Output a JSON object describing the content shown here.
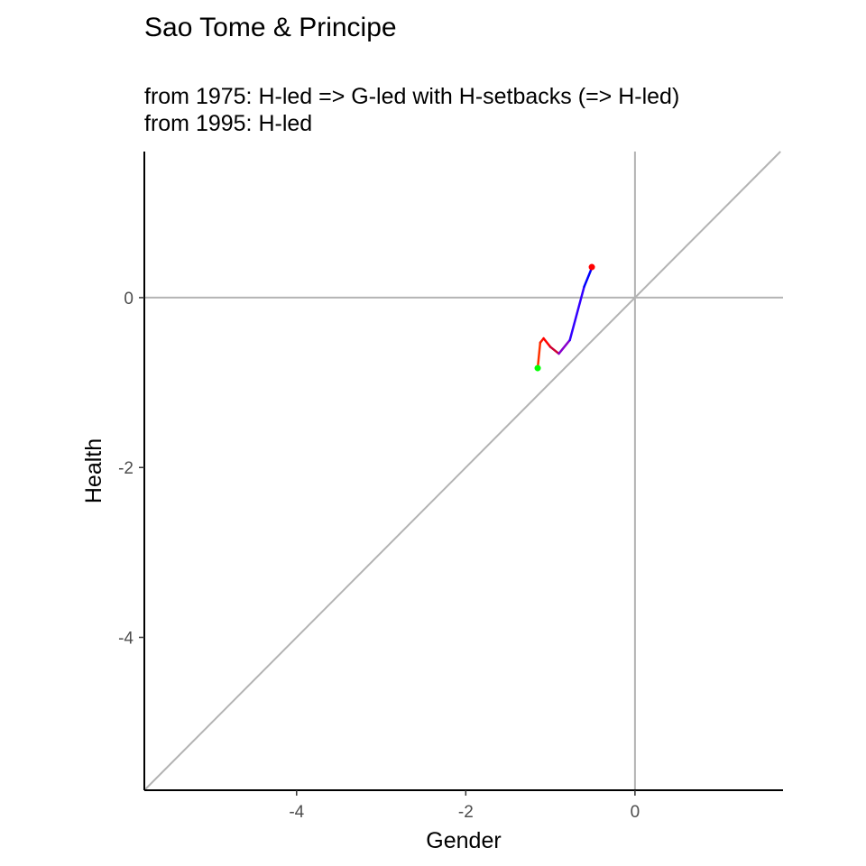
{
  "chart_data": {
    "type": "line",
    "title": "Sao Tome & Principe",
    "subtitle_lines": [
      "from 1975:  H-led => G-led with H-setbacks (=> H-led)",
      "from 1995:  H-led"
    ],
    "xlabel": "Gender",
    "ylabel": "Health",
    "xlim": [
      -5.8,
      1.75
    ],
    "ylim": [
      -5.8,
      1.72
    ],
    "x_ticks": [
      -4,
      -2,
      0
    ],
    "x_tick_labels": [
      "-4",
      "-2",
      "0"
    ],
    "y_ticks": [
      0,
      -2,
      -4
    ],
    "y_tick_labels": [
      "0",
      "-2",
      "-4"
    ],
    "reference_lines": {
      "vertical_x": 0,
      "horizontal_y": 0,
      "diagonal": "y = x",
      "color": "#b3b3b3"
    },
    "grid": false,
    "series": [
      {
        "points": [
          {
            "x": -1.15,
            "y": -0.83,
            "color": "#ff0000"
          },
          {
            "x": -1.12,
            "y": -0.53,
            "color": "#ff3300"
          },
          {
            "x": -1.08,
            "y": -0.48,
            "color": "#ff1a00"
          },
          {
            "x": -1.0,
            "y": -0.58,
            "color": "#ff0000"
          },
          {
            "x": -0.9,
            "y": -0.66,
            "color": "#cc0033"
          },
          {
            "x": -0.77,
            "y": -0.5,
            "color": "#8800cc"
          },
          {
            "x": -0.6,
            "y": 0.13,
            "color": "#3300ff"
          },
          {
            "x": -0.51,
            "y": 0.35,
            "color": "#0000ff"
          }
        ]
      }
    ],
    "start_marker": {
      "x": -1.15,
      "y": -0.83,
      "color": "#00ff00"
    },
    "end_marker": {
      "x": -0.51,
      "y": 0.36,
      "color": "#ff0000"
    }
  }
}
